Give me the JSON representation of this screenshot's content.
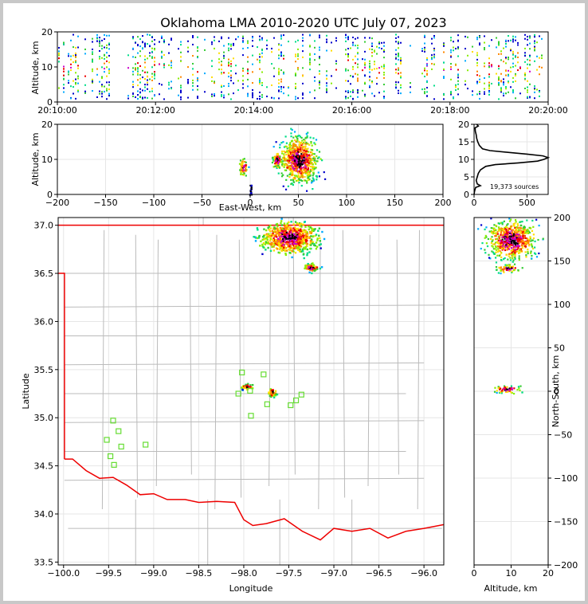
{
  "title": "Oklahoma LMA 2010-2020 UTC July 07, 2023",
  "chart_data": [
    {
      "id": "time-height",
      "type": "heatmap",
      "xlabel": "",
      "ylabel": "Altitude, km",
      "xticks": [
        "20:10:00",
        "20:12:00",
        "20:14:00",
        "20:16:00",
        "20:18:00",
        "20:20:00"
      ],
      "xlim": [
        0,
        10
      ],
      "yticks": [
        "0",
        "10",
        "20"
      ],
      "ylim": [
        0,
        20
      ],
      "colors": [
        "#0000cc",
        "#00aaff",
        "#00dd88",
        "#33cc33",
        "#88ee00",
        "#ffdd00",
        "#ff8800",
        "#ee0000",
        "#cc00cc",
        "#000000"
      ]
    },
    {
      "id": "east-west-altitude",
      "type": "heatmap",
      "xlabel": "East-West, km",
      "ylabel": "Altitude, km",
      "xticks": [
        "−200",
        "−150",
        "−100",
        "−50",
        "0",
        "50",
        "100",
        "150",
        "200"
      ],
      "xlim": [
        -200,
        200
      ],
      "yticks": [
        "0",
        "10",
        "20"
      ],
      "ylim": [
        0,
        20
      ],
      "clusters": [
        {
          "x": 50,
          "y": 10,
          "sx": 13,
          "sy": 4.5
        },
        {
          "x": -8,
          "y": 8,
          "sx": 3,
          "sy": 1.5
        },
        {
          "x": 27,
          "y": 10,
          "sx": 3,
          "sy": 1.5
        }
      ]
    },
    {
      "id": "altitude-histogram",
      "type": "line",
      "xticks": [
        "0",
        "500"
      ],
      "xlim": [
        0,
        700
      ],
      "yticks": [
        "0",
        "5",
        "10",
        "15",
        "20"
      ],
      "ylim": [
        0,
        20
      ],
      "annotation": "19,373 sources",
      "profile": [
        {
          "alt": 0.0,
          "count": 0
        },
        {
          "alt": 1.0,
          "count": 5
        },
        {
          "alt": 2.0,
          "count": 15
        },
        {
          "alt": 2.5,
          "count": 60
        },
        {
          "alt": 3.0,
          "count": 30
        },
        {
          "alt": 4.0,
          "count": 20
        },
        {
          "alt": 5.0,
          "count": 30
        },
        {
          "alt": 6.0,
          "count": 40
        },
        {
          "alt": 7.0,
          "count": 60
        },
        {
          "alt": 8.0,
          "count": 110
        },
        {
          "alt": 8.5,
          "count": 200
        },
        {
          "alt": 9.0,
          "count": 420
        },
        {
          "alt": 9.5,
          "count": 600
        },
        {
          "alt": 10.0,
          "count": 660
        },
        {
          "alt": 10.5,
          "count": 700
        },
        {
          "alt": 11.0,
          "count": 650
        },
        {
          "alt": 11.5,
          "count": 500
        },
        {
          "alt": 12.0,
          "count": 320
        },
        {
          "alt": 12.5,
          "count": 150
        },
        {
          "alt": 13.0,
          "count": 80
        },
        {
          "alt": 14.0,
          "count": 50
        },
        {
          "alt": 15.0,
          "count": 35
        },
        {
          "alt": 16.0,
          "count": 25
        },
        {
          "alt": 17.0,
          "count": 20
        },
        {
          "alt": 18.0,
          "count": 12
        },
        {
          "alt": 19.0,
          "count": 10
        },
        {
          "alt": 19.5,
          "count": 40
        },
        {
          "alt": 20.0,
          "count": 25
        }
      ]
    },
    {
      "id": "plan-view",
      "type": "scatter",
      "xlabel": "Longitude",
      "ylabel": "Latitude",
      "xticks": [
        "−100.0",
        "−99.5",
        "−99.0",
        "−98.5",
        "−98.0",
        "−97.5",
        "−97.0",
        "−96.5",
        "−96.0"
      ],
      "xlim": [
        -100.06,
        -95.78
      ],
      "yticks": [
        "33.5",
        "34.0",
        "34.5",
        "35.0",
        "35.5",
        "36.0",
        "36.5",
        "37.0"
      ],
      "ylim": [
        33.47,
        37.08
      ],
      "stations": [
        {
          "lon": -98.02,
          "lat": 35.47
        },
        {
          "lon": -97.78,
          "lat": 35.45
        },
        {
          "lon": -98.06,
          "lat": 35.25
        },
        {
          "lon": -97.93,
          "lat": 35.28
        },
        {
          "lon": -97.74,
          "lat": 35.14
        },
        {
          "lon": -97.48,
          "lat": 35.13
        },
        {
          "lon": -97.42,
          "lat": 35.18
        },
        {
          "lon": -97.36,
          "lat": 35.24
        },
        {
          "lon": -97.92,
          "lat": 35.02
        },
        {
          "lon": -99.45,
          "lat": 34.97
        },
        {
          "lon": -99.39,
          "lat": 34.86
        },
        {
          "lon": -99.52,
          "lat": 34.77
        },
        {
          "lon": -99.36,
          "lat": 34.7
        },
        {
          "lon": -99.09,
          "lat": 34.72
        },
        {
          "lon": -99.48,
          "lat": 34.6
        },
        {
          "lon": -99.44,
          "lat": 34.51
        }
      ],
      "clusters": [
        {
          "lon": -97.5,
          "lat": 36.88,
          "slon": 0.22,
          "slat": 0.11
        },
        {
          "lon": -97.26,
          "lat": 36.57,
          "slon": 0.06,
          "slat": 0.03
        },
        {
          "lon": -97.97,
          "lat": 35.33,
          "slon": 0.04,
          "slat": 0.02
        },
        {
          "lon": -97.69,
          "lat": 35.27,
          "slon": 0.03,
          "slat": 0.03
        }
      ],
      "border_color": "#ee0000",
      "county_color": "#bbbbbb"
    },
    {
      "id": "altitude-north-south",
      "type": "heatmap",
      "xlabel": "Altitude, km",
      "ylabel": "North-South, km",
      "xticks": [
        "0",
        "10",
        "20"
      ],
      "xlim": [
        0,
        20
      ],
      "yticks": [
        "−200",
        "−150",
        "−100",
        "−50",
        "0",
        "50",
        "100",
        "150",
        "200"
      ],
      "ylim": [
        -200,
        200
      ],
      "clusters": [
        {
          "x": 10,
          "y": 175,
          "sx": 4.5,
          "sy": 15
        },
        {
          "x": 9,
          "y": 142,
          "sx": 2,
          "sy": 3
        },
        {
          "x": 9,
          "y": 3,
          "sx": 2.5,
          "sy": 3
        }
      ]
    }
  ]
}
